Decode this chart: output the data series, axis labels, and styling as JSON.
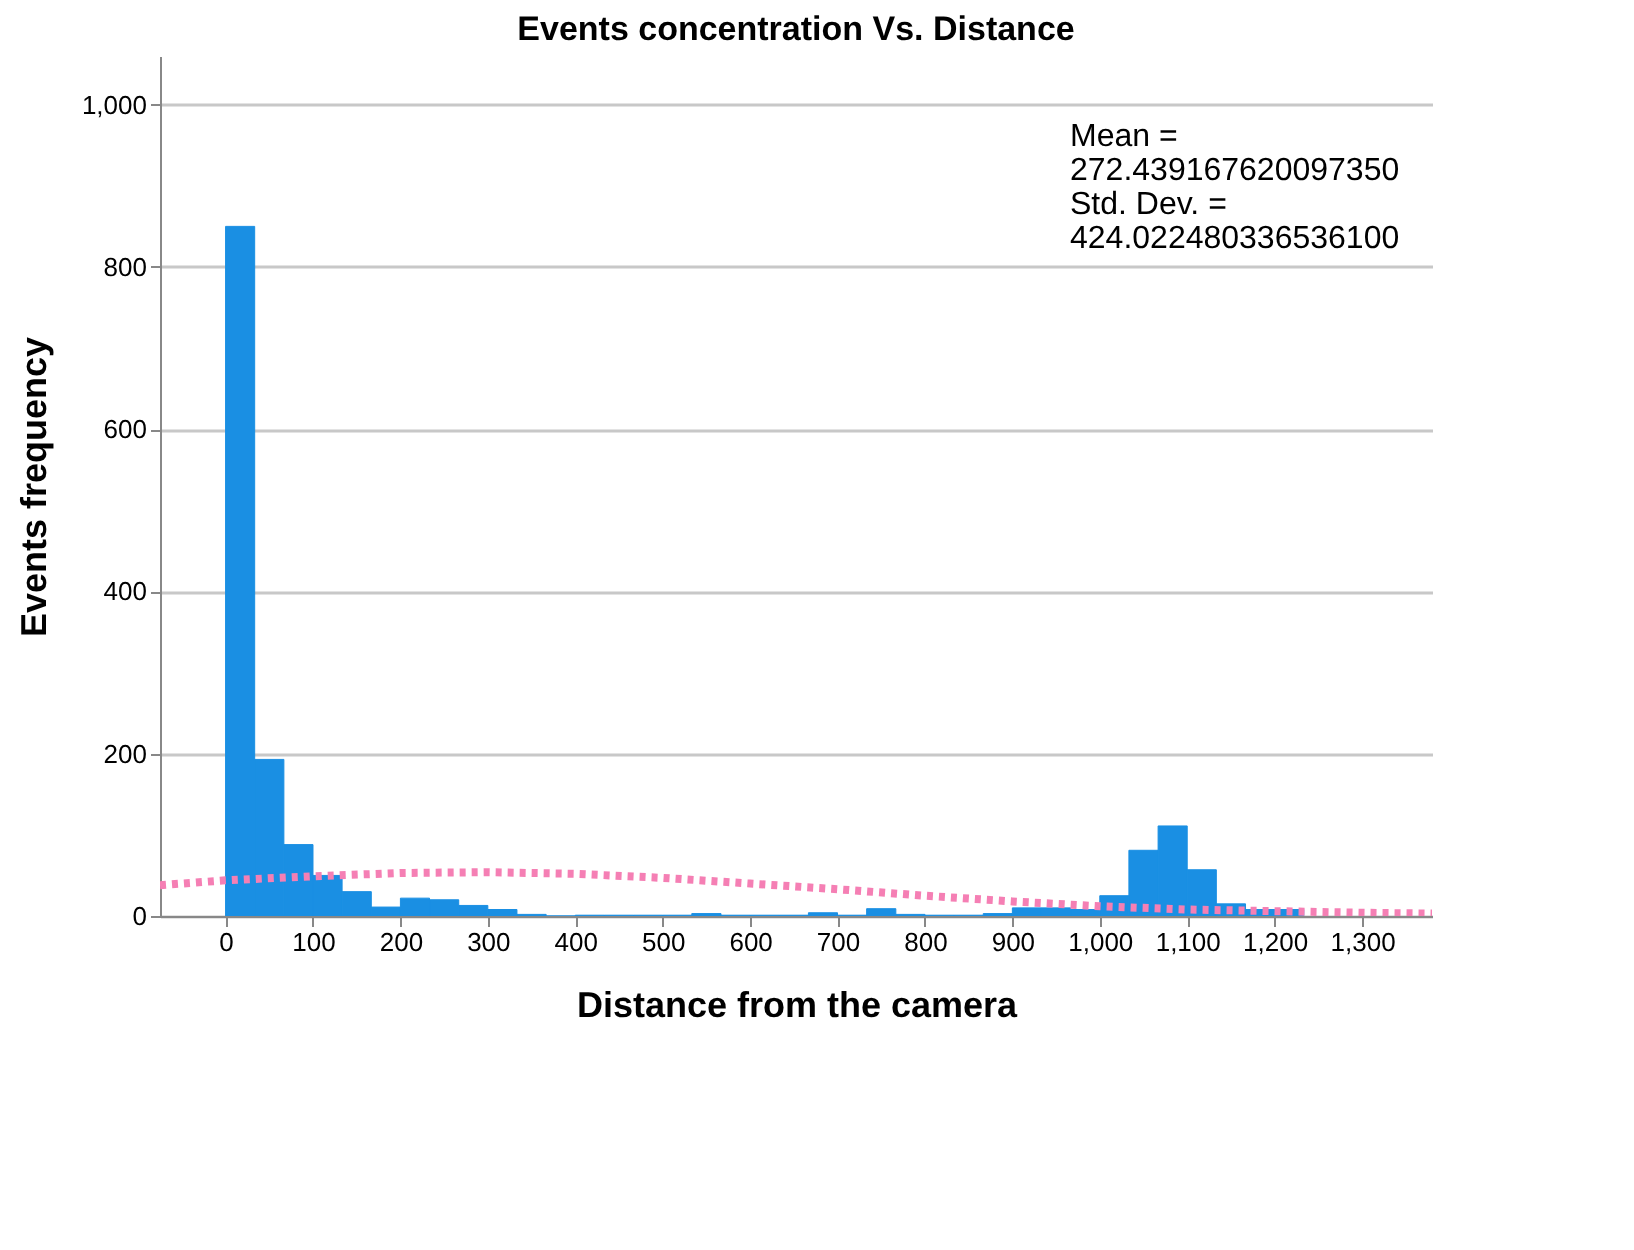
{
  "chart_data": {
    "type": "histogram",
    "title": "Events concentration Vs. Distance",
    "xlabel": "Distance from the camera",
    "ylabel": "Events frequency",
    "bins": [
      0,
      33.3,
      66.7,
      100,
      133.3,
      166.7,
      200,
      233.3,
      266.7,
      300,
      333.3,
      366.7,
      400,
      433.3,
      466.7,
      500,
      533.3,
      566.7,
      600,
      633.3,
      666.7,
      700,
      733.3,
      766.7,
      800,
      833.3,
      866.7,
      900,
      933.3,
      966.7,
      1000,
      1033.3,
      1066.7,
      1100,
      1133.3,
      1166.7,
      1200,
      1233.3
    ],
    "values": [
      850,
      193,
      88,
      50,
      30,
      11,
      22,
      20,
      13,
      8,
      2,
      0,
      1,
      1,
      1,
      1,
      3,
      1,
      1,
      1,
      4,
      1,
      9,
      2,
      1,
      1,
      3,
      10,
      10,
      8,
      25,
      81,
      111,
      57,
      15,
      8,
      8
    ],
    "color": "#1a8fe3",
    "series": [
      {
        "type": "line",
        "color": "#f57fb4",
        "line_style": "dotted",
        "x": [
          -75,
          0,
          100,
          200,
          300,
          400,
          500,
          600,
          700,
          800,
          900,
          1000,
          1100,
          1200,
          1300,
          1380
        ],
        "values": [
          38,
          44,
          49,
          53,
          54,
          52,
          47,
          40,
          33,
          25,
          18,
          12,
          8,
          6,
          4,
          3
        ]
      }
    ],
    "annotations": [
      "Mean =\n272.439167620097350\nStd. Dev. =\n424.022480336536100"
    ],
    "xlim": [
      -75,
      1380
    ],
    "xticks": [
      0,
      100,
      200,
      300,
      400,
      500,
      600,
      700,
      800,
      900,
      {
        "value": 1000,
        "label": "1,000"
      },
      {
        "value": 1100,
        "label": "1,100"
      },
      {
        "value": 1200,
        "label": "1,200"
      },
      {
        "value": 1300,
        "label": "1,300"
      }
    ],
    "ylim": [
      0,
      1060
    ],
    "yticks": [
      0,
      200,
      400,
      600,
      800,
      {
        "value": 1000,
        "label": "1,000"
      }
    ],
    "grid": "y"
  }
}
